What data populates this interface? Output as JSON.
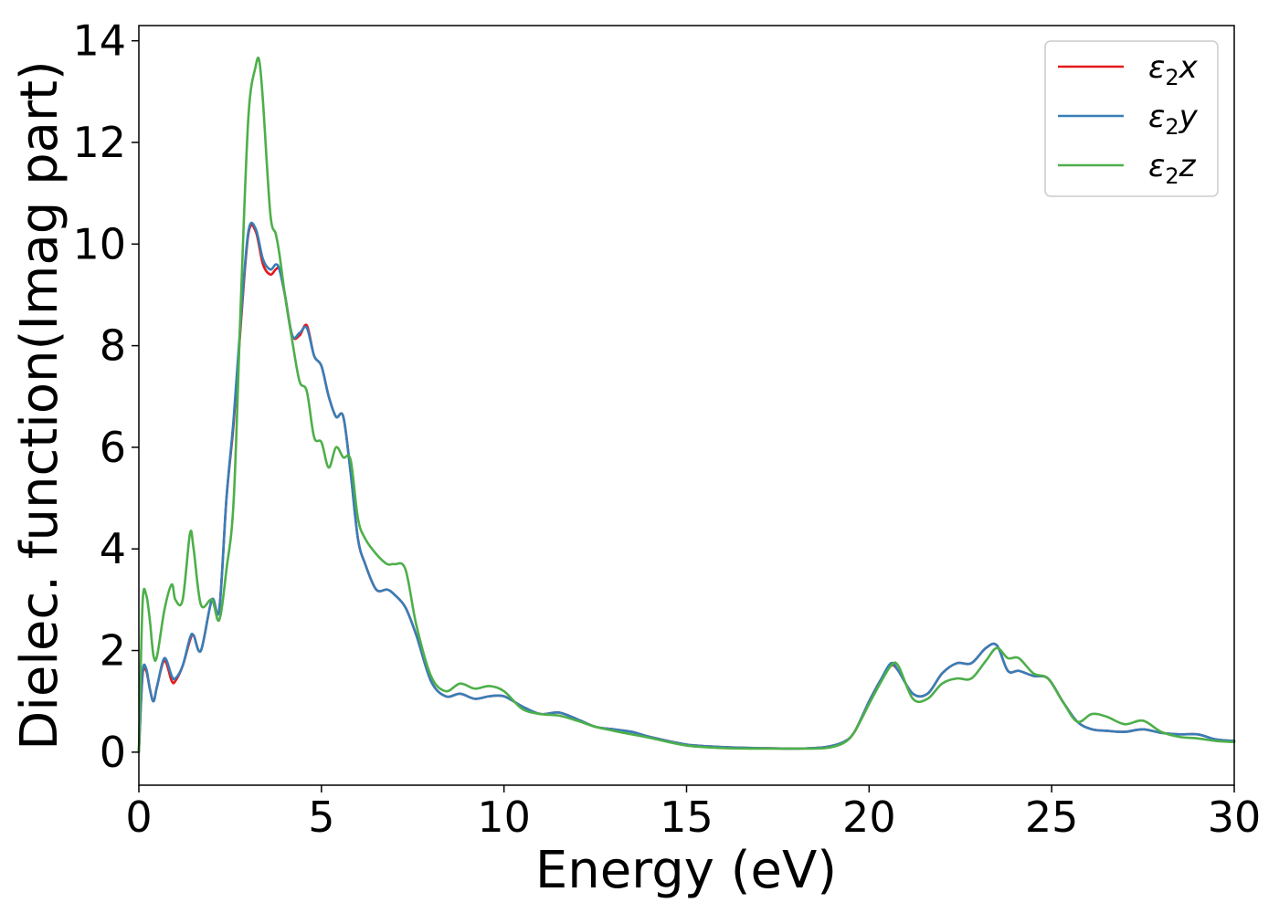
{
  "chart_data": {
    "type": "line",
    "xlabel": "Energy (eV)",
    "ylabel": "Dielec. function(Imag part)",
    "xlim": [
      0,
      30
    ],
    "ylim": [
      -0.65,
      14.3
    ],
    "xticks": [
      0,
      5,
      10,
      15,
      20,
      25,
      30
    ],
    "yticks": [
      0,
      2,
      4,
      6,
      8,
      10,
      12,
      14
    ],
    "legend_position": "top-right",
    "grid": false,
    "series": [
      {
        "name": "ε₂x",
        "legend_label": {
          "base": "ε",
          "sub": "2",
          "suffix": "x"
        },
        "color": "#e41a1c",
        "x": [
          0,
          0.1,
          0.2,
          0.3,
          0.4,
          0.5,
          0.7,
          0.9,
          1.0,
          1.2,
          1.4,
          1.5,
          1.7,
          2.0,
          2.2,
          2.4,
          2.6,
          2.8,
          3.0,
          3.2,
          3.4,
          3.6,
          3.75,
          3.85,
          4.0,
          4.2,
          4.4,
          4.6,
          4.8,
          5.0,
          5.2,
          5.4,
          5.6,
          5.8,
          6.0,
          6.2,
          6.5,
          6.8,
          7.0,
          7.3,
          7.6,
          8.0,
          8.4,
          8.8,
          9.2,
          9.6,
          10.0,
          10.5,
          11.0,
          11.5,
          12.0,
          12.5,
          13.0,
          13.5,
          14.0,
          15.0,
          16.0,
          17.0,
          18.0,
          18.8,
          19.3,
          19.6,
          20.0,
          20.3,
          20.6,
          20.8,
          21.2,
          21.6,
          22.0,
          22.4,
          22.8,
          23.2,
          23.5,
          23.8,
          24.1,
          24.5,
          24.9,
          25.3,
          25.7,
          26.1,
          26.5,
          27.0,
          27.5,
          28.0,
          28.5,
          29.0,
          29.5,
          30.0
        ],
        "y": [
          0.0,
          1.5,
          1.6,
          1.25,
          1.0,
          1.3,
          1.8,
          1.4,
          1.4,
          1.7,
          2.2,
          2.3,
          2.0,
          3.0,
          2.8,
          5.0,
          6.5,
          8.5,
          10.2,
          10.25,
          9.6,
          9.4,
          9.5,
          9.5,
          9.0,
          8.2,
          8.2,
          8.4,
          7.8,
          7.6,
          7.0,
          6.6,
          6.6,
          5.5,
          4.2,
          3.7,
          3.2,
          3.2,
          3.1,
          2.85,
          2.3,
          1.4,
          1.1,
          1.15,
          1.05,
          1.1,
          1.1,
          0.9,
          0.75,
          0.78,
          0.65,
          0.5,
          0.45,
          0.4,
          0.3,
          0.15,
          0.1,
          0.08,
          0.07,
          0.1,
          0.2,
          0.4,
          1.0,
          1.4,
          1.7,
          1.6,
          1.15,
          1.15,
          1.55,
          1.75,
          1.75,
          2.05,
          2.1,
          1.6,
          1.6,
          1.5,
          1.45,
          1.0,
          0.6,
          0.45,
          0.42,
          0.4,
          0.45,
          0.38,
          0.35,
          0.35,
          0.25,
          0.22
        ]
      },
      {
        "name": "ε₂y",
        "legend_label": {
          "base": "ε",
          "sub": "2",
          "suffix": "y"
        },
        "color": "#377eb8",
        "x": [
          0,
          0.1,
          0.2,
          0.3,
          0.4,
          0.5,
          0.7,
          0.9,
          1.0,
          1.2,
          1.4,
          1.5,
          1.7,
          2.0,
          2.2,
          2.4,
          2.6,
          2.8,
          3.0,
          3.2,
          3.4,
          3.6,
          3.75,
          3.85,
          4.0,
          4.2,
          4.4,
          4.6,
          4.8,
          5.0,
          5.2,
          5.4,
          5.6,
          5.8,
          6.0,
          6.2,
          6.5,
          6.8,
          7.0,
          7.3,
          7.6,
          8.0,
          8.4,
          8.8,
          9.2,
          9.6,
          10.0,
          10.5,
          11.0,
          11.5,
          12.0,
          12.5,
          13.0,
          13.5,
          14.0,
          15.0,
          16.0,
          17.0,
          18.0,
          18.8,
          19.3,
          19.6,
          20.0,
          20.3,
          20.6,
          20.8,
          21.2,
          21.6,
          22.0,
          22.4,
          22.8,
          23.2,
          23.5,
          23.8,
          24.1,
          24.5,
          24.9,
          25.3,
          25.7,
          26.1,
          26.5,
          27.0,
          27.5,
          28.0,
          28.5,
          29.0,
          29.5,
          30.0
        ],
        "y": [
          0.0,
          1.55,
          1.65,
          1.25,
          1.0,
          1.3,
          1.85,
          1.5,
          1.45,
          1.7,
          2.25,
          2.3,
          2.0,
          3.0,
          2.8,
          5.0,
          6.6,
          8.6,
          10.25,
          10.3,
          9.7,
          9.5,
          9.6,
          9.5,
          9.0,
          8.2,
          8.25,
          8.35,
          7.8,
          7.6,
          7.0,
          6.6,
          6.6,
          5.5,
          4.2,
          3.7,
          3.2,
          3.2,
          3.1,
          2.85,
          2.3,
          1.4,
          1.1,
          1.15,
          1.05,
          1.1,
          1.1,
          0.9,
          0.75,
          0.78,
          0.65,
          0.5,
          0.45,
          0.4,
          0.3,
          0.15,
          0.1,
          0.08,
          0.07,
          0.1,
          0.2,
          0.4,
          1.0,
          1.4,
          1.75,
          1.6,
          1.15,
          1.15,
          1.55,
          1.75,
          1.75,
          2.05,
          2.1,
          1.6,
          1.6,
          1.5,
          1.45,
          1.0,
          0.6,
          0.45,
          0.42,
          0.4,
          0.45,
          0.38,
          0.35,
          0.35,
          0.25,
          0.22
        ]
      },
      {
        "name": "ε₂z",
        "legend_label": {
          "base": "ε",
          "sub": "2",
          "suffix": "z"
        },
        "color": "#4daf4a",
        "x": [
          0,
          0.1,
          0.2,
          0.3,
          0.4,
          0.5,
          0.7,
          0.9,
          1.0,
          1.2,
          1.4,
          1.5,
          1.7,
          2.0,
          2.2,
          2.4,
          2.6,
          2.8,
          3.0,
          3.2,
          3.3,
          3.4,
          3.6,
          3.75,
          3.85,
          4.0,
          4.2,
          4.4,
          4.6,
          4.8,
          5.0,
          5.2,
          5.4,
          5.6,
          5.8,
          6.0,
          6.2,
          6.5,
          6.8,
          7.0,
          7.3,
          7.6,
          8.0,
          8.4,
          8.8,
          9.2,
          9.6,
          10.0,
          10.5,
          11.0,
          11.5,
          12.0,
          12.5,
          13.0,
          13.5,
          14.0,
          15.0,
          16.0,
          17.0,
          18.0,
          18.8,
          19.3,
          19.6,
          20.0,
          20.3,
          20.6,
          20.8,
          21.2,
          21.6,
          22.0,
          22.4,
          22.8,
          23.2,
          23.5,
          23.8,
          24.1,
          24.5,
          24.9,
          25.3,
          25.7,
          26.1,
          26.5,
          27.0,
          27.5,
          28.0,
          28.5,
          29.0,
          29.5,
          30.0
        ],
        "y": [
          0.0,
          2.9,
          3.1,
          2.6,
          1.9,
          1.9,
          2.8,
          3.3,
          3.0,
          3.0,
          4.3,
          4.0,
          2.9,
          3.0,
          2.6,
          3.6,
          5.0,
          9.0,
          12.5,
          13.5,
          13.6,
          12.8,
          10.6,
          10.2,
          9.8,
          9.0,
          8.1,
          7.3,
          7.1,
          6.2,
          6.1,
          5.6,
          6.0,
          5.8,
          5.75,
          4.6,
          4.2,
          3.9,
          3.7,
          3.7,
          3.6,
          2.5,
          1.5,
          1.2,
          1.35,
          1.25,
          1.3,
          1.2,
          0.85,
          0.75,
          0.72,
          0.62,
          0.5,
          0.42,
          0.35,
          0.28,
          0.13,
          0.08,
          0.07,
          0.07,
          0.08,
          0.18,
          0.4,
          0.95,
          1.35,
          1.7,
          1.7,
          1.05,
          1.05,
          1.35,
          1.45,
          1.45,
          1.8,
          2.05,
          1.85,
          1.85,
          1.55,
          1.45,
          1.0,
          0.6,
          0.75,
          0.7,
          0.55,
          0.62,
          0.4,
          0.3,
          0.27,
          0.22,
          0.2
        ]
      }
    ]
  }
}
